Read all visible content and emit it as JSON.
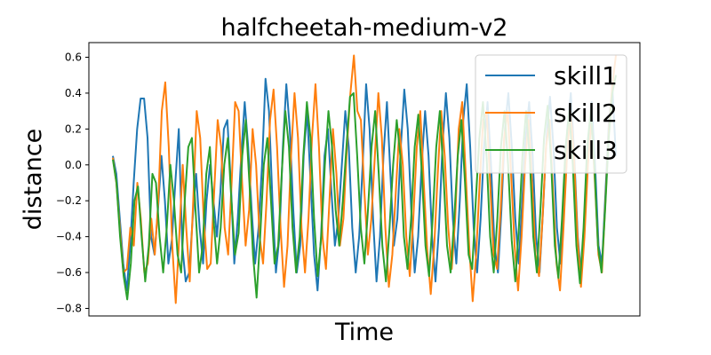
{
  "chart_data": {
    "type": "line",
    "title": "halfcheetah-medium-v2",
    "xlabel": "Time",
    "ylabel": "distance",
    "ylim": [
      -0.85,
      0.65
    ],
    "yticks": [
      -0.8,
      -0.6,
      -0.4,
      -0.2,
      0.0,
      0.2,
      0.4,
      0.6
    ],
    "ytick_labels": [
      "−0.8",
      "−0.6",
      "−0.4",
      "−0.2",
      "0.0",
      "0.2",
      "0.4",
      "0.6"
    ],
    "x_ticks_shown": false,
    "grid": false,
    "legend_position": "upper right",
    "series": [
      {
        "name": "skill1",
        "color": "#1f77b4",
        "values": [
          0.05,
          -0.05,
          -0.3,
          -0.55,
          -0.7,
          -0.45,
          -0.1,
          0.2,
          0.37,
          0.37,
          0.15,
          -0.4,
          -0.5,
          -0.25,
          0.05,
          -0.2,
          -0.55,
          -0.42,
          -0.1,
          0.2,
          -0.45,
          -0.65,
          -0.6,
          -0.3,
          -0.05,
          -0.35,
          -0.55,
          -0.2,
          0.0,
          -0.2,
          -0.4,
          -0.15,
          0.2,
          0.25,
          -0.1,
          -0.55,
          -0.3,
          0.05,
          0.35,
          0.1,
          -0.25,
          -0.55,
          -0.35,
          0.0,
          0.48,
          0.3,
          -0.2,
          -0.6,
          -0.4,
          0.1,
          0.45,
          0.2,
          -0.25,
          -0.6,
          -0.45,
          0.05,
          0.3,
          -0.1,
          -0.5,
          -0.7,
          -0.4,
          0.05,
          0.2,
          -0.15,
          -0.45,
          -0.3,
          0.0,
          0.3,
          0.1,
          -0.35,
          -0.6,
          -0.4,
          0.0,
          0.45,
          0.2,
          -0.3,
          -0.65,
          -0.4,
          0.05,
          0.35,
          -0.05,
          -0.45,
          -0.3,
          0.1,
          0.42,
          0.2,
          -0.25,
          -0.6,
          -0.4,
          0.0,
          0.3,
          0.05,
          -0.4,
          -0.65,
          -0.35,
          0.1,
          0.4,
          0.15,
          -0.3,
          -0.55,
          -0.2,
          0.25,
          0.45,
          0.1,
          -0.35,
          -0.6,
          -0.3,
          0.1,
          0.35,
          0.0,
          -0.45,
          -0.6,
          -0.25,
          0.2,
          0.4,
          0.1,
          -0.3,
          -0.55,
          -0.2,
          0.15,
          0.35,
          0.05,
          -0.4,
          -0.6,
          -0.25,
          0.15,
          0.38,
          0.1,
          -0.35,
          -0.55,
          -0.2,
          0.2,
          0.4,
          0.05,
          -0.4,
          -0.62,
          -0.3,
          0.1,
          0.35,
          0.0,
          -0.45,
          -0.55,
          -0.15,
          0.25,
          0.42,
          0.05
        ]
      },
      {
        "name": "skill2",
        "color": "#ff7f0e",
        "values": [
          0.04,
          -0.1,
          -0.35,
          -0.6,
          -0.58,
          -0.35,
          -0.45,
          -0.1,
          -0.3,
          -0.6,
          -0.55,
          -0.3,
          -0.5,
          -0.2,
          0.3,
          0.46,
          0.1,
          -0.45,
          -0.77,
          -0.4,
          0.0,
          -0.35,
          -0.65,
          -0.2,
          0.3,
          0.15,
          -0.3,
          -0.58,
          -0.55,
          -0.15,
          0.25,
          0.1,
          -0.35,
          -0.5,
          -0.1,
          0.35,
          0.3,
          -0.1,
          -0.45,
          -0.25,
          0.2,
          0.0,
          -0.4,
          -0.55,
          -0.2,
          0.25,
          0.42,
          0.1,
          -0.35,
          -0.68,
          -0.45,
          0.05,
          0.4,
          0.15,
          -0.35,
          -0.6,
          -0.3,
          0.15,
          0.45,
          0.1,
          -0.4,
          -0.58,
          -0.2,
          0.2,
          -0.05,
          -0.45,
          -0.3,
          0.1,
          0.4,
          0.61,
          0.3,
          0.25,
          -0.15,
          -0.5,
          -0.3,
          0.05,
          0.4,
          0.15,
          -0.35,
          -0.68,
          -0.5,
          -0.15,
          0.2,
          0.0,
          -0.4,
          -0.62,
          -0.3,
          0.1,
          0.3,
          -0.1,
          -0.48,
          -0.72,
          -0.45,
          -0.05,
          0.3,
          0.05,
          -0.35,
          -0.58,
          -0.3,
          0.2,
          0.35,
          -0.05,
          -0.45,
          -0.76,
          -0.5,
          -0.1,
          0.25,
          0.3,
          -0.1,
          -0.5,
          -0.58,
          -0.25,
          0.15,
          0.3,
          -0.05,
          -0.45,
          -0.7,
          -0.4,
          0.0,
          0.25,
          -0.1,
          -0.5,
          -0.62,
          -0.3,
          0.1,
          0.25,
          -0.15,
          -0.55,
          -0.7,
          -0.35,
          0.05,
          0.3,
          0.05,
          -0.4,
          -0.68,
          -0.4,
          0.0,
          0.25,
          -0.1,
          -0.5,
          -0.6,
          -0.2,
          0.2,
          0.45,
          0.61
        ]
      },
      {
        "name": "skill3",
        "color": "#2ca02c",
        "values": [
          0.03,
          -0.1,
          -0.4,
          -0.62,
          -0.75,
          -0.55,
          -0.2,
          -0.12,
          -0.4,
          -0.65,
          -0.45,
          -0.05,
          -0.1,
          -0.4,
          -0.6,
          -0.35,
          0.0,
          -0.2,
          -0.5,
          -0.6,
          -0.2,
          0.1,
          0.15,
          -0.25,
          -0.6,
          -0.45,
          -0.05,
          0.1,
          -0.3,
          -0.55,
          -0.35,
          0.0,
          0.15,
          -0.2,
          -0.5,
          -0.38,
          0.05,
          0.25,
          -0.1,
          -0.5,
          -0.74,
          -0.4,
          0.0,
          0.15,
          -0.2,
          -0.55,
          -0.45,
          -0.05,
          0.3,
          0.1,
          -0.35,
          -0.6,
          -0.4,
          0.05,
          0.35,
          0.15,
          -0.3,
          -0.62,
          -0.4,
          0.0,
          0.3,
          0.1,
          -0.25,
          -0.45,
          -0.2,
          0.1,
          0.38,
          0.4,
          0.05,
          -0.35,
          -0.55,
          -0.25,
          0.1,
          0.3,
          -0.05,
          -0.45,
          -0.65,
          -0.35,
          0.0,
          0.25,
          0.05,
          -0.4,
          -0.58,
          -0.3,
          0.1,
          0.28,
          -0.05,
          -0.45,
          -0.62,
          -0.3,
          0.1,
          0.3,
          -0.05,
          -0.45,
          -0.6,
          -0.3,
          0.05,
          0.25,
          -0.1,
          -0.5,
          -0.58,
          -0.2,
          0.15,
          0.35,
          0.05,
          -0.4,
          -0.6,
          -0.3,
          0.1,
          0.3,
          0.0,
          -0.42,
          -0.65,
          -0.35,
          0.05,
          0.3,
          0.05,
          -0.4,
          -0.6,
          -0.25,
          0.15,
          0.33,
          0.0,
          -0.45,
          -0.63,
          -0.3,
          0.1,
          0.3,
          0.0,
          -0.45,
          -0.66,
          -0.35,
          0.1,
          0.3,
          0.0,
          -0.45,
          -0.6,
          -0.25,
          0.15,
          0.4,
          0.5
        ]
      }
    ]
  }
}
